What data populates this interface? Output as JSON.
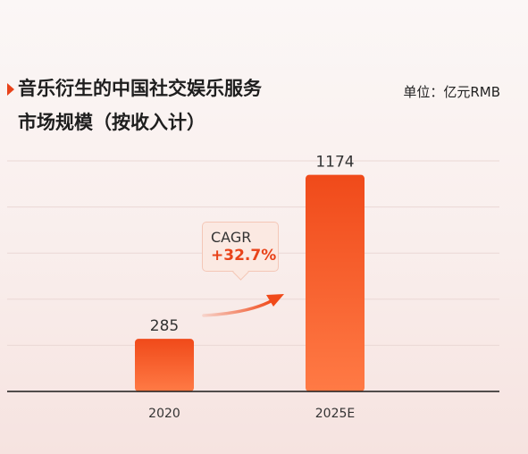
{
  "header": {
    "title_line1": "音乐衍生的中国社交娱乐服务",
    "title_line2": "市场规模（按收入计）",
    "unit": "单位：亿元RMB"
  },
  "callout": {
    "label": "CAGR",
    "value": "+32.7%"
  },
  "colors": {
    "bar_top": "#f04a1a",
    "bar_bottom": "#ff7a45",
    "accent": "#e8431a"
  },
  "chart_data": {
    "type": "bar",
    "categories": [
      "2020",
      "2025E"
    ],
    "values": [
      285,
      1174
    ],
    "value_labels": [
      "285",
      "1174"
    ],
    "title": "音乐衍生的中国社交娱乐服务市场规模（按收入计）",
    "ylabel": "",
    "unit": "单位：亿元RMB",
    "ylim": [
      0,
      1250
    ],
    "grid": true,
    "annotation": "CAGR +32.7%"
  }
}
